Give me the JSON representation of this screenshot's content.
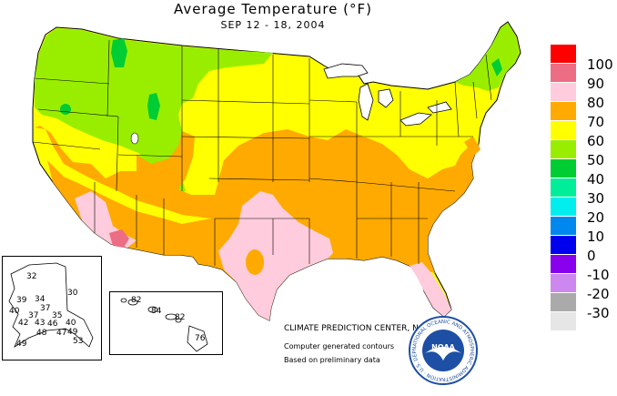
{
  "title": {
    "main": "Average Temperature (°F)",
    "period": "SEP 12 - 18, 2004"
  },
  "legend": {
    "swatches": [
      {
        "value": "100",
        "color": "#ff0000"
      },
      {
        "value": "90",
        "color": "#ec6d84"
      },
      {
        "value": "80",
        "color": "#ffccdd"
      },
      {
        "value": "70",
        "color": "#ffaa00"
      },
      {
        "value": "60",
        "color": "#ffff00"
      },
      {
        "value": "50",
        "color": "#99ee00"
      },
      {
        "value": "40",
        "color": "#00cc33"
      },
      {
        "value": "30",
        "color": "#00ee99"
      },
      {
        "value": "20",
        "color": "#00eeee"
      },
      {
        "value": "10",
        "color": "#0088ee"
      },
      {
        "value": "0",
        "color": "#0000ee"
      },
      {
        "value": "-10",
        "color": "#8800ee"
      },
      {
        "value": "-20",
        "color": "#cc88ee"
      },
      {
        "value": "-30",
        "color": "#aaaaaa"
      },
      {
        "value": "",
        "color": "#e6e6e6"
      }
    ]
  },
  "alaska": {
    "values": [
      "32",
      "30",
      "39",
      "34",
      "40",
      "37",
      "37",
      "35",
      "42",
      "43",
      "46",
      "40",
      "48",
      "47",
      "49",
      "49",
      "53"
    ]
  },
  "hawaii": {
    "values": [
      "82",
      "84",
      "82",
      "76"
    ]
  },
  "credits": {
    "center": "CLIMATE PREDICTION CENTER, NOAA",
    "contours": "Computer generated contours",
    "data": "Based on preliminary data"
  },
  "logo": {
    "text": "NOAA",
    "ring": "NATIONAL OCEANIC AND ATMOSPHERIC ADMINISTRATION · U.S. DEPARTMENT OF COMMERCE"
  },
  "colors": {
    "band_90": "#ec6d84",
    "band_80": "#ffccdd",
    "band_70": "#ffaa00",
    "band_60": "#ffff00",
    "band_50": "#99ee00",
    "band_40": "#00cc33",
    "lake": "#ffffff",
    "ocean": "#ffffff",
    "logo_blue": "#1d4fa5"
  }
}
